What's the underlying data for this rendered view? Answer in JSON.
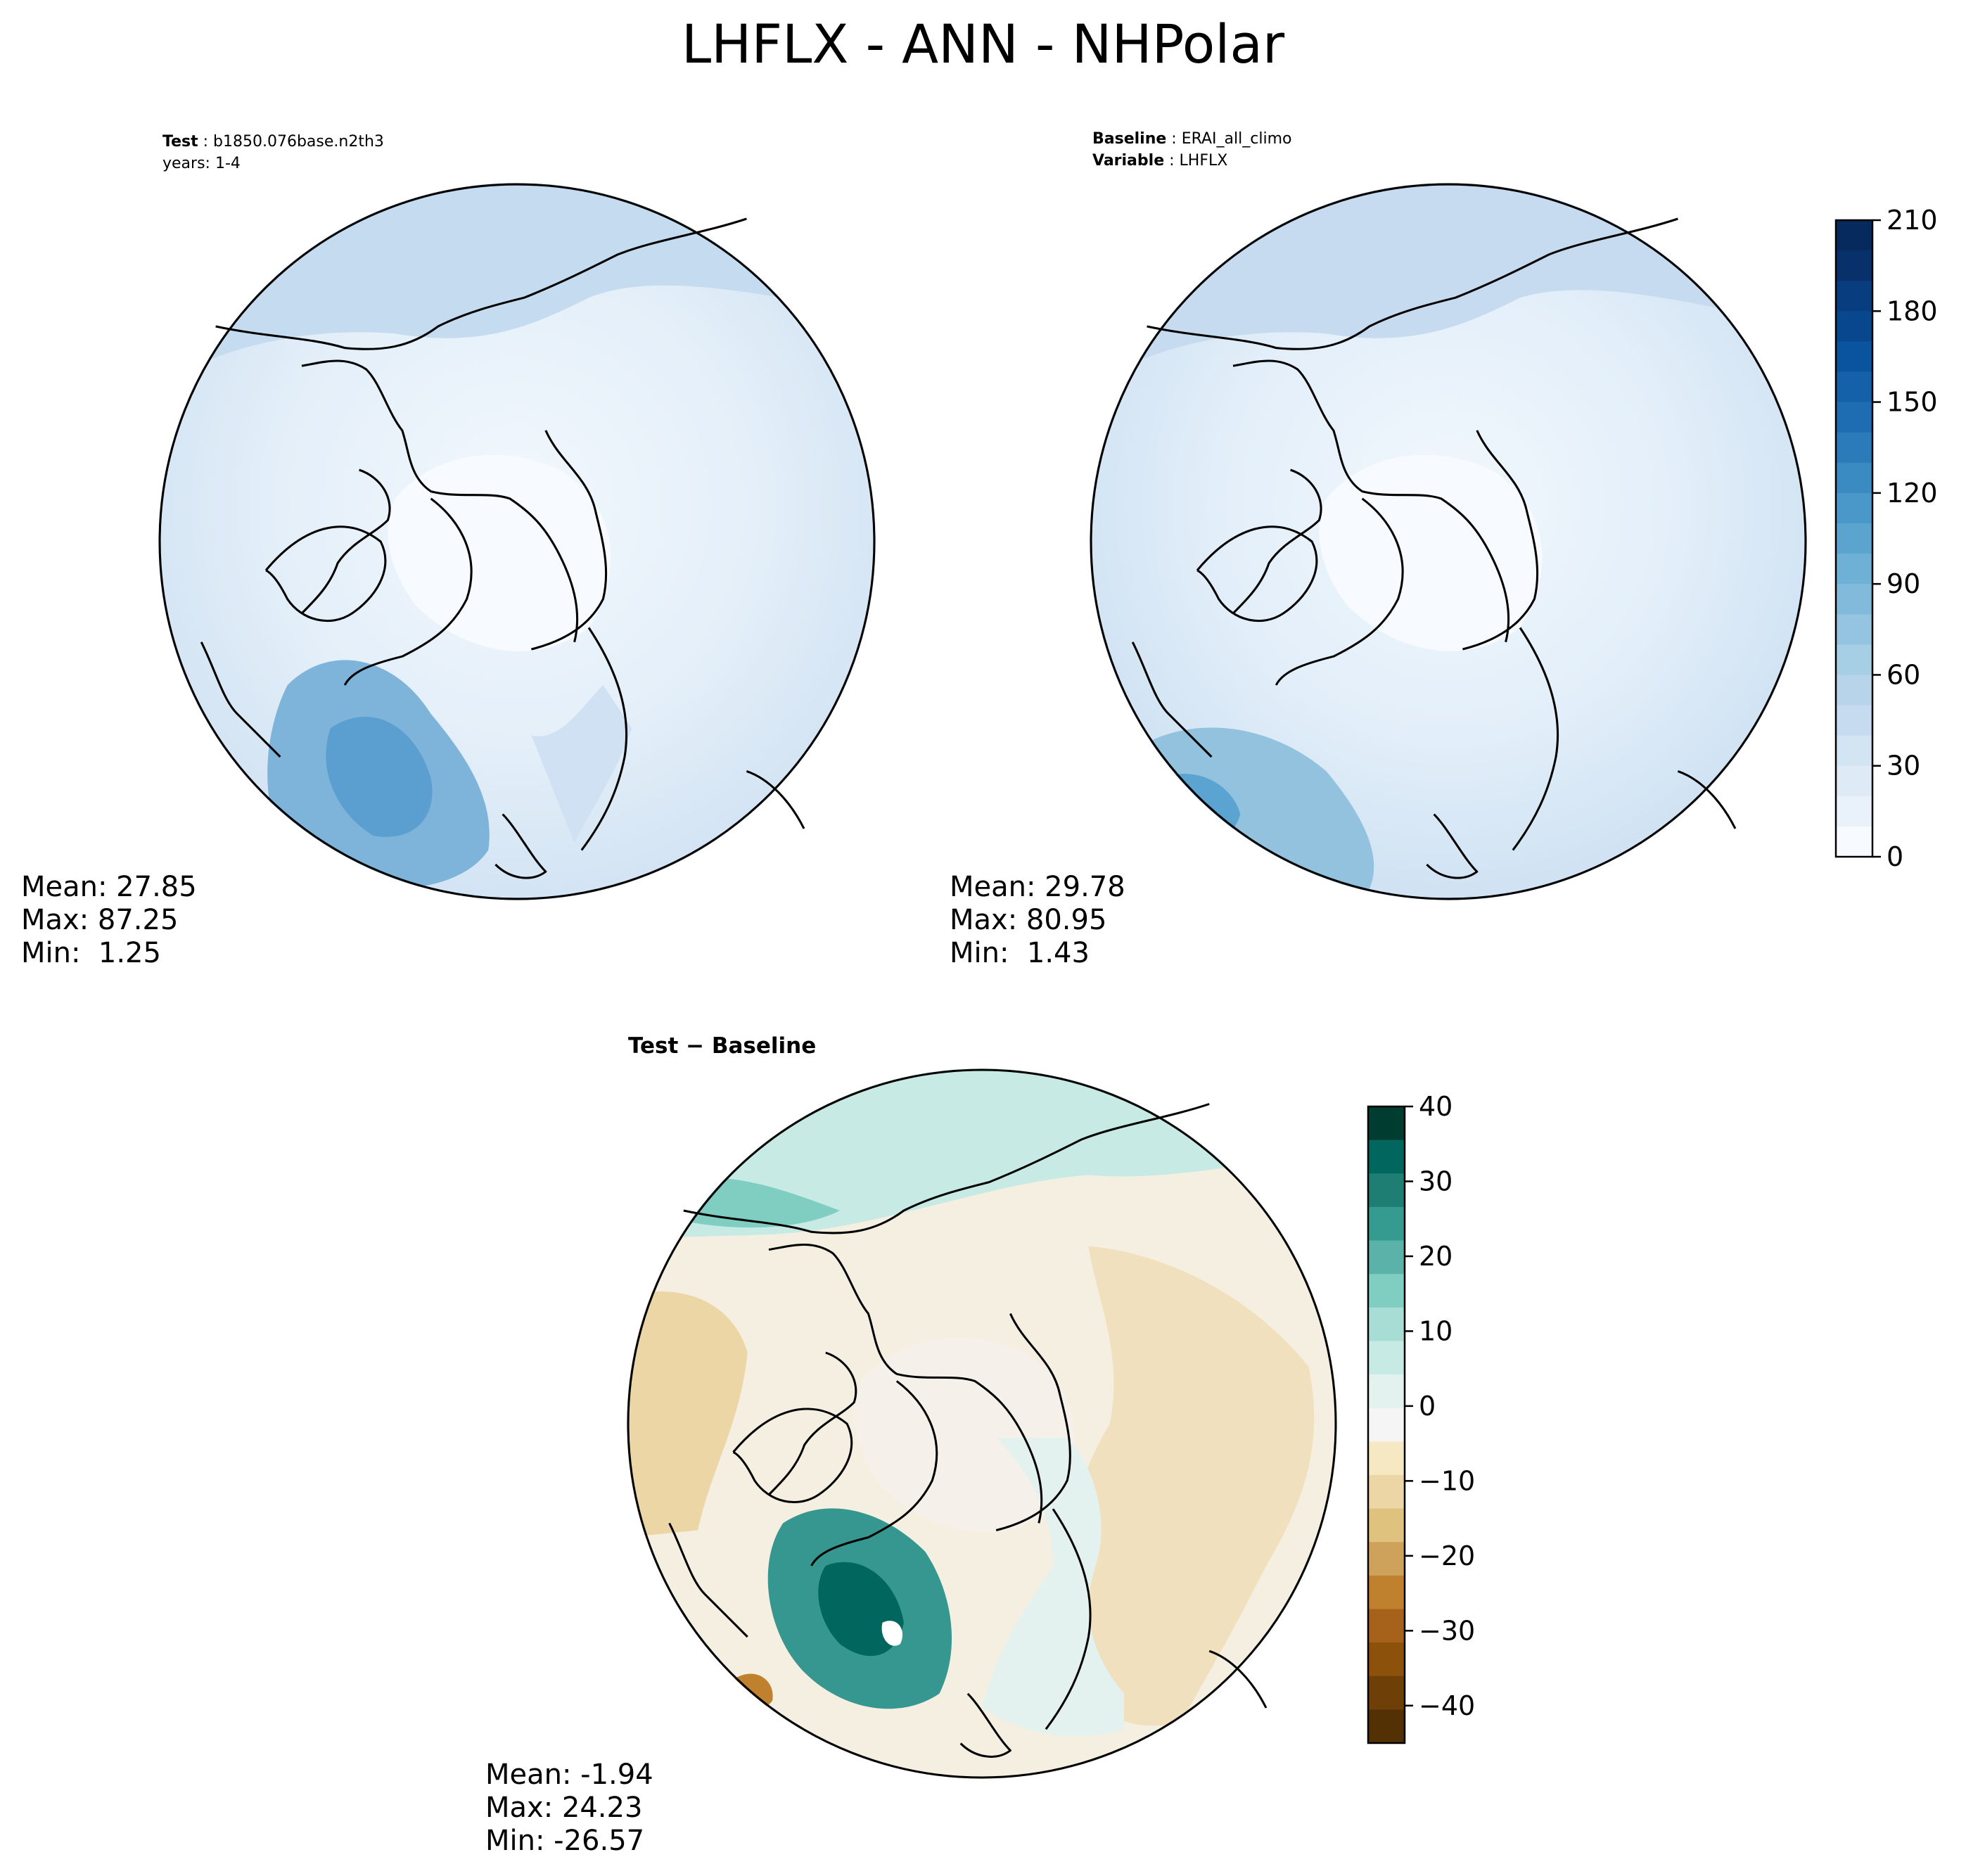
{
  "figure": {
    "title": "LHFLX - ANN - NHPolar"
  },
  "panels": {
    "test": {
      "label_key": "Test",
      "label_value": "b1850.076base.n2th3",
      "years": "years: 1-4",
      "mean": "Mean: 27.85",
      "max": "Max: 87.25",
      "min": "Min:  1.25"
    },
    "baseline": {
      "label_key": "Baseline",
      "label_value": "ERAI_all_climo",
      "variable_key": "Variable",
      "variable_value": "LHFLX",
      "mean": "Mean: 29.78",
      "max": "Max: 80.95",
      "min": "Min:  1.43"
    },
    "diff": {
      "title": "Test − Baseline",
      "mean": "Mean: -1.94",
      "max": "Max: 24.23",
      "min": "Min: -26.57"
    }
  },
  "colorbars": {
    "main": {
      "ticks": [
        "0",
        "30",
        "60",
        "90",
        "120",
        "150",
        "180",
        "210"
      ],
      "range": [
        0,
        210
      ],
      "levels": 21,
      "colormap": "Blues",
      "colors": [
        "#f7fbff",
        "#e9f2fb",
        "#deebf7",
        "#d3e4f3",
        "#c6dbef",
        "#b7d4ea",
        "#a6cee4",
        "#94c4df",
        "#82badb",
        "#6fb0d6",
        "#5ca4d0",
        "#4a98c9",
        "#3a8bc2",
        "#2b7bba",
        "#1e6cb1",
        "#1561a9",
        "#0a539e",
        "#08478d",
        "#083d7f",
        "#08306b",
        "#062a5e"
      ]
    },
    "diff": {
      "ticks": [
        "40",
        "30",
        "20",
        "10",
        "0",
        "−10",
        "−20",
        "−30",
        "−40"
      ],
      "tick_values": [
        40,
        30,
        20,
        10,
        0,
        -10,
        -20,
        -30,
        -40
      ],
      "range": [
        -45,
        40
      ],
      "colormap": "BrBG",
      "colors": [
        "#003c30",
        "#01665e",
        "#1f7e74",
        "#359a8f",
        "#5ab2a8",
        "#80cdc1",
        "#a8ddd5",
        "#c7eae5",
        "#e4f2ef",
        "#f5f5f5",
        "#f6e8c3",
        "#ecd6a5",
        "#dfc27d",
        "#cfa25c",
        "#bf812d",
        "#a6611a",
        "#8c510a",
        "#6f3f08",
        "#543005"
      ]
    }
  }
}
